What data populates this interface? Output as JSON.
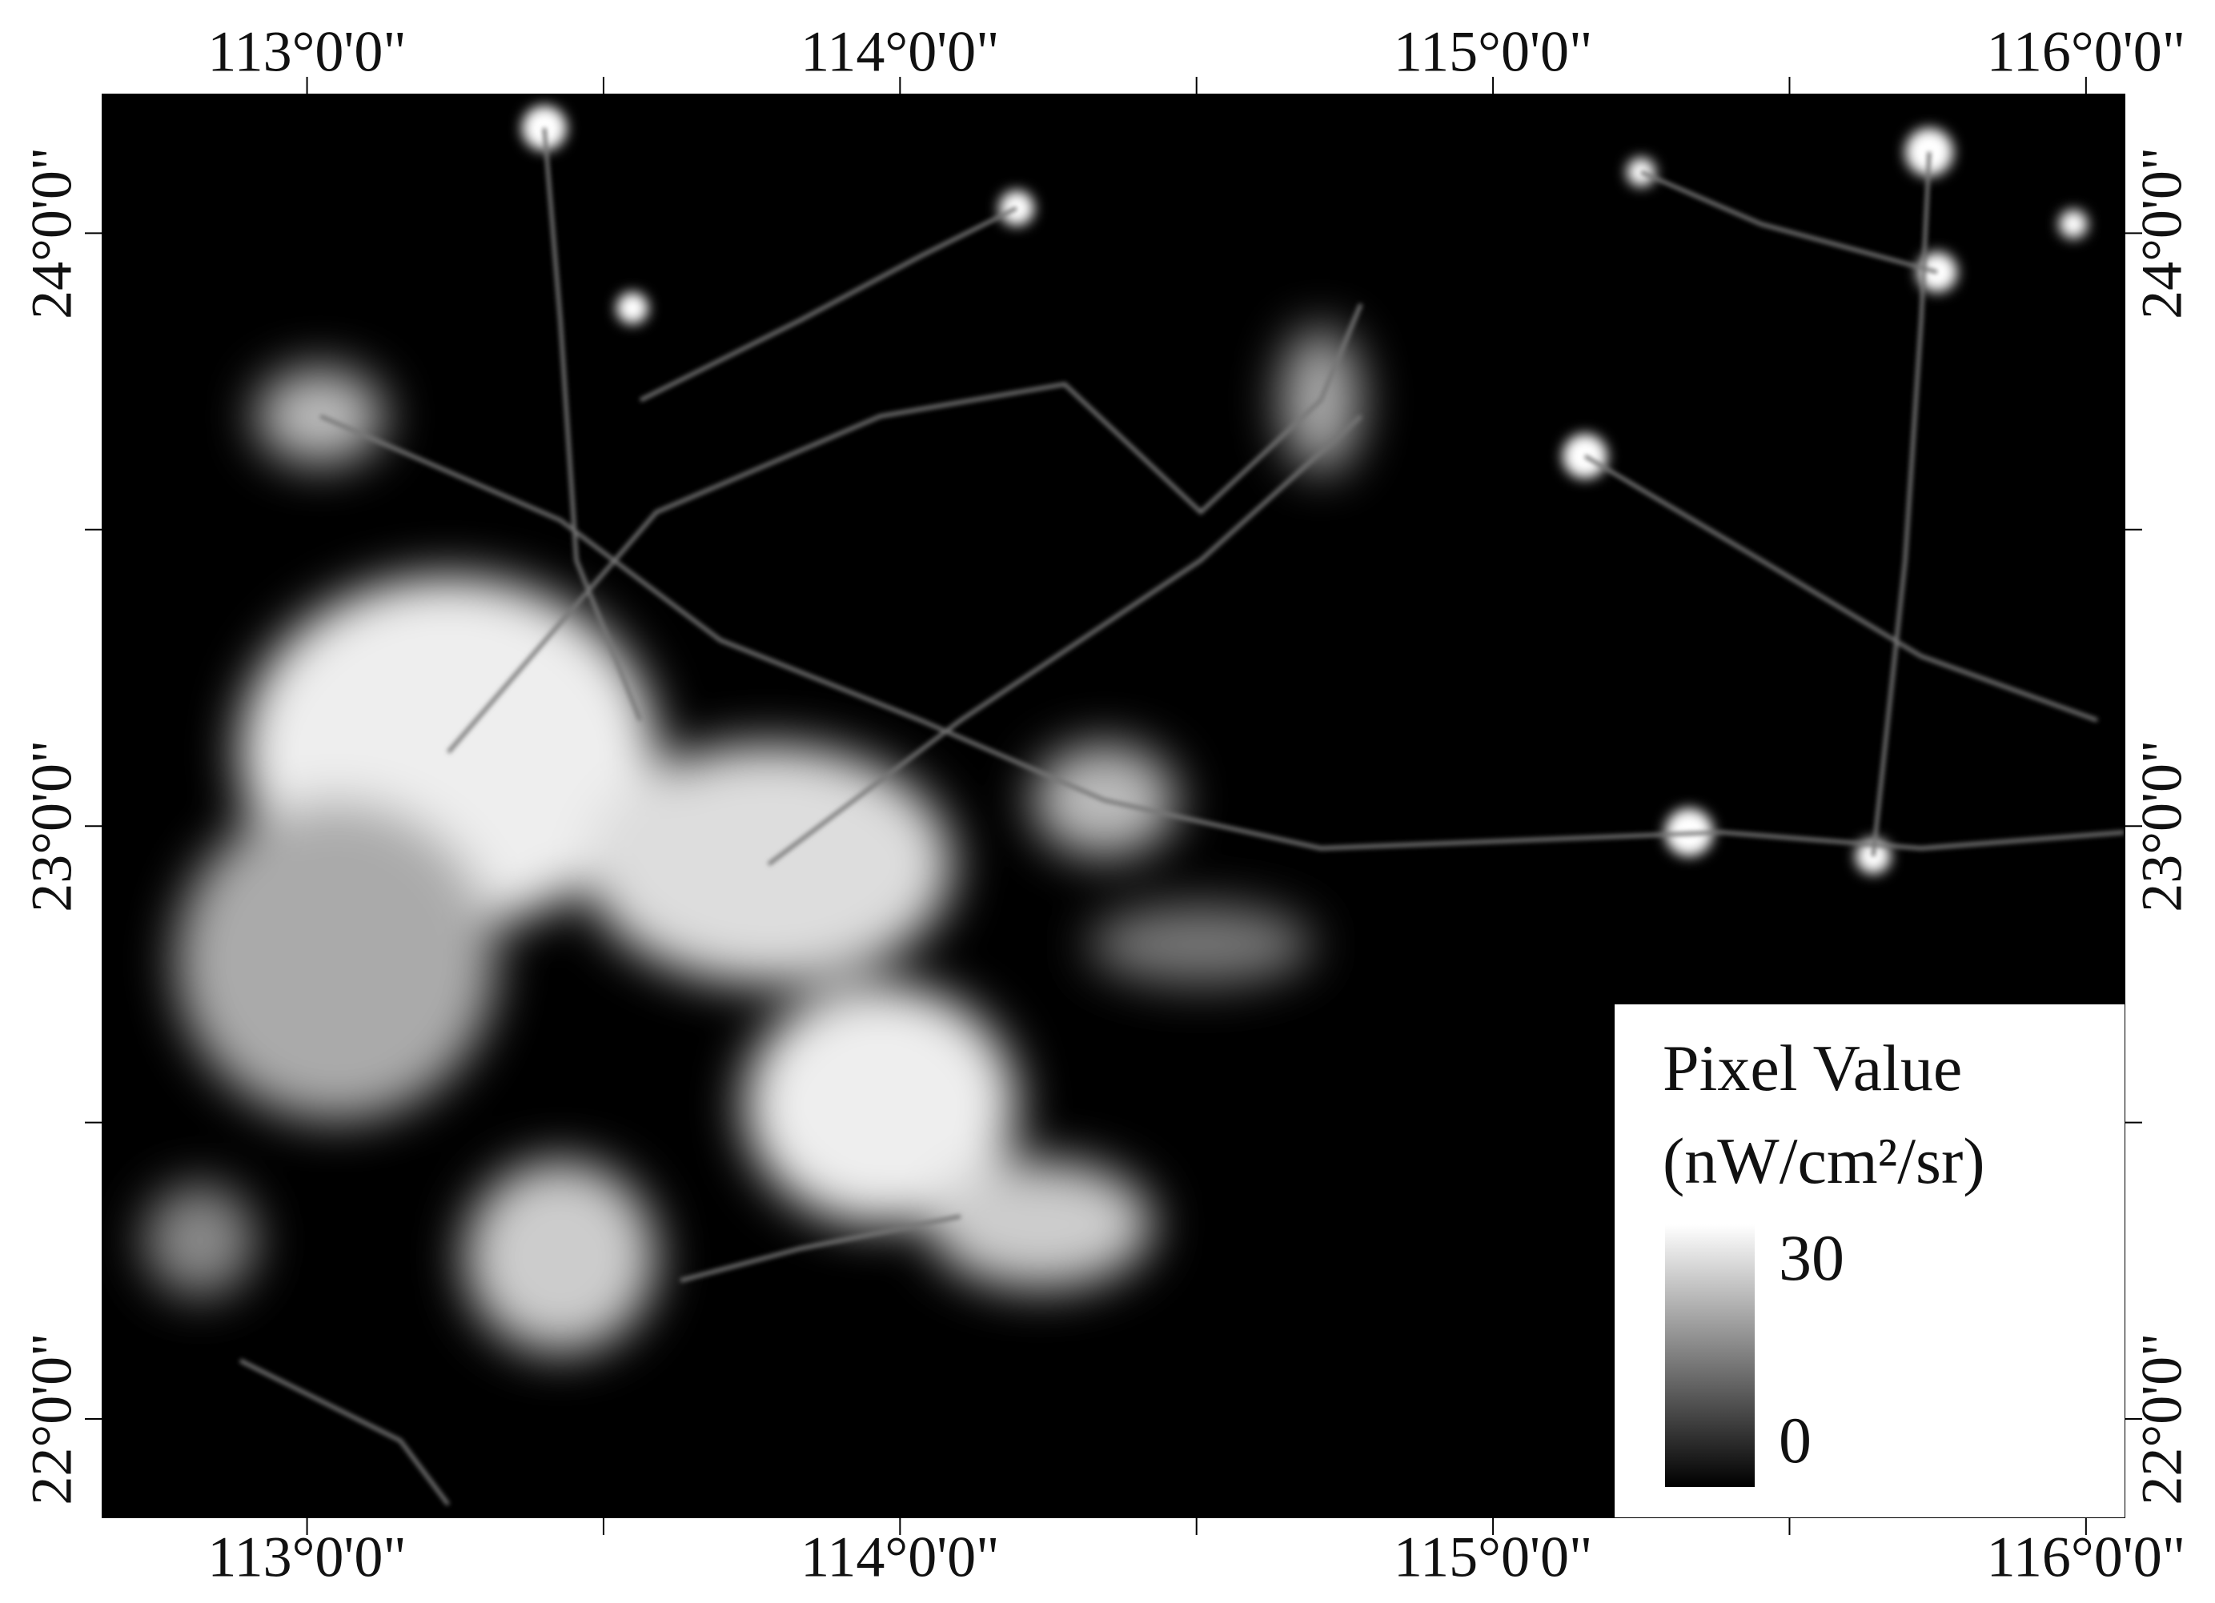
{
  "map": {
    "xlim": [
      112.655,
      116.065
    ],
    "ylim": [
      21.834,
      24.234
    ],
    "lon_ticks": [
      {
        "value": 113,
        "label": "113°0'0\""
      },
      {
        "value": 114,
        "label": "114°0'0\""
      },
      {
        "value": 115,
        "label": "115°0'0\""
      },
      {
        "value": 116,
        "label": "116°0'0\""
      }
    ],
    "lon_minor_ticks": [
      113.5,
      114.5,
      115.5
    ],
    "lat_ticks": [
      {
        "value": 22,
        "label": "22°0'0\""
      },
      {
        "value": 23,
        "label": "23°0'0\""
      },
      {
        "value": 24,
        "label": "24°0'0\""
      }
    ],
    "lat_minor_ticks": [
      22.5,
      23.5
    ],
    "legend": {
      "title": "Pixel Value",
      "unit": "(nW/cm²/sr)",
      "max": 30,
      "min": 0
    }
  }
}
